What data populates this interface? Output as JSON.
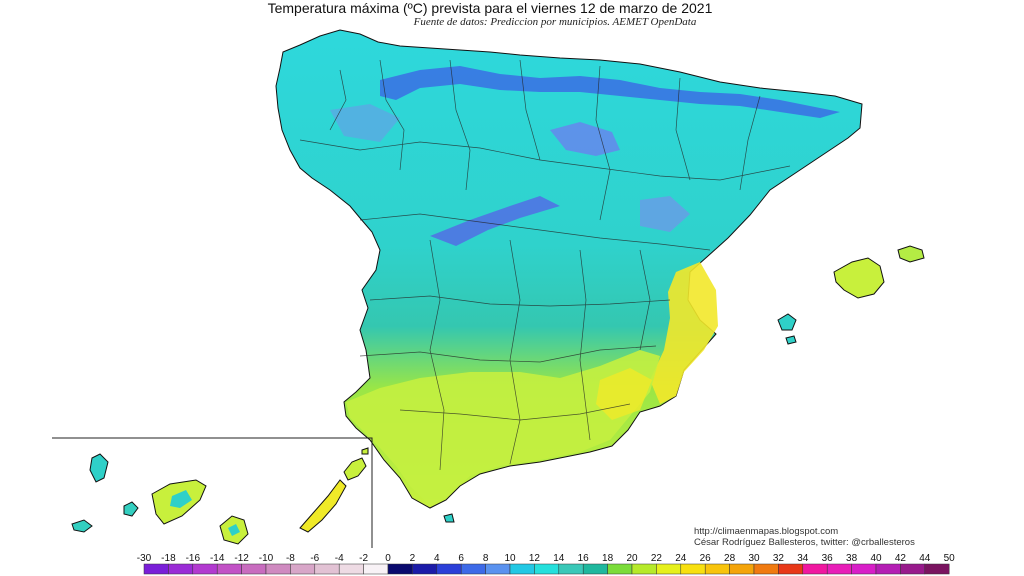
{
  "header": {
    "title": "Temperatura máxima (ºC) prevista para el viernes 12 de marzo de 2021",
    "subtitle": "Fuente de datos: Prediccion por municipios. AEMET OpenData"
  },
  "credits": {
    "blog": "http://climaenmapas.blogspot.com",
    "author": "César Rodríguez Ballesteros, twitter: @crballesteros"
  },
  "legend": {
    "ticks": [
      "-30",
      "-18",
      "-16",
      "-14",
      "-12",
      "-10",
      "-8",
      "-6",
      "-4",
      "-2",
      "0",
      "2",
      "4",
      "6",
      "8",
      "10",
      "12",
      "14",
      "16",
      "18",
      "20",
      "22",
      "24",
      "26",
      "28",
      "30",
      "32",
      "34",
      "36",
      "38",
      "40",
      "42",
      "44",
      "50"
    ],
    "colors": [
      "#7a1fd8",
      "#9a2cd6",
      "#b23ad0",
      "#c252c6",
      "#c86cbf",
      "#cf8ac0",
      "#d8a6c8",
      "#e2c2d4",
      "#eedbe4",
      "#f8f2f6",
      "#0a0a6e",
      "#1b1ba8",
      "#2b3fd8",
      "#3d6ae8",
      "#5a92ef",
      "#22c8e4",
      "#25e0dc",
      "#3ac8b8",
      "#1fb89e",
      "#7bdc3a",
      "#b6ea2a",
      "#e6f01c",
      "#f8e010",
      "#f8c40c",
      "#f4a40a",
      "#f07a10",
      "#e83818",
      "#f018a0",
      "#e81eb8",
      "#d81ec8",
      "#b41eb4",
      "#981a8c",
      "#7a1460"
    ]
  },
  "map": {
    "region_colors": {
      "north": "#28d8d8",
      "cantabrian_mountains": "#4c6ef0",
      "central": "#33cfc0",
      "south_east": "#c4f040",
      "valencia_coast": "#f0ea28",
      "mountain_cold": "#7f88f0"
    }
  }
}
